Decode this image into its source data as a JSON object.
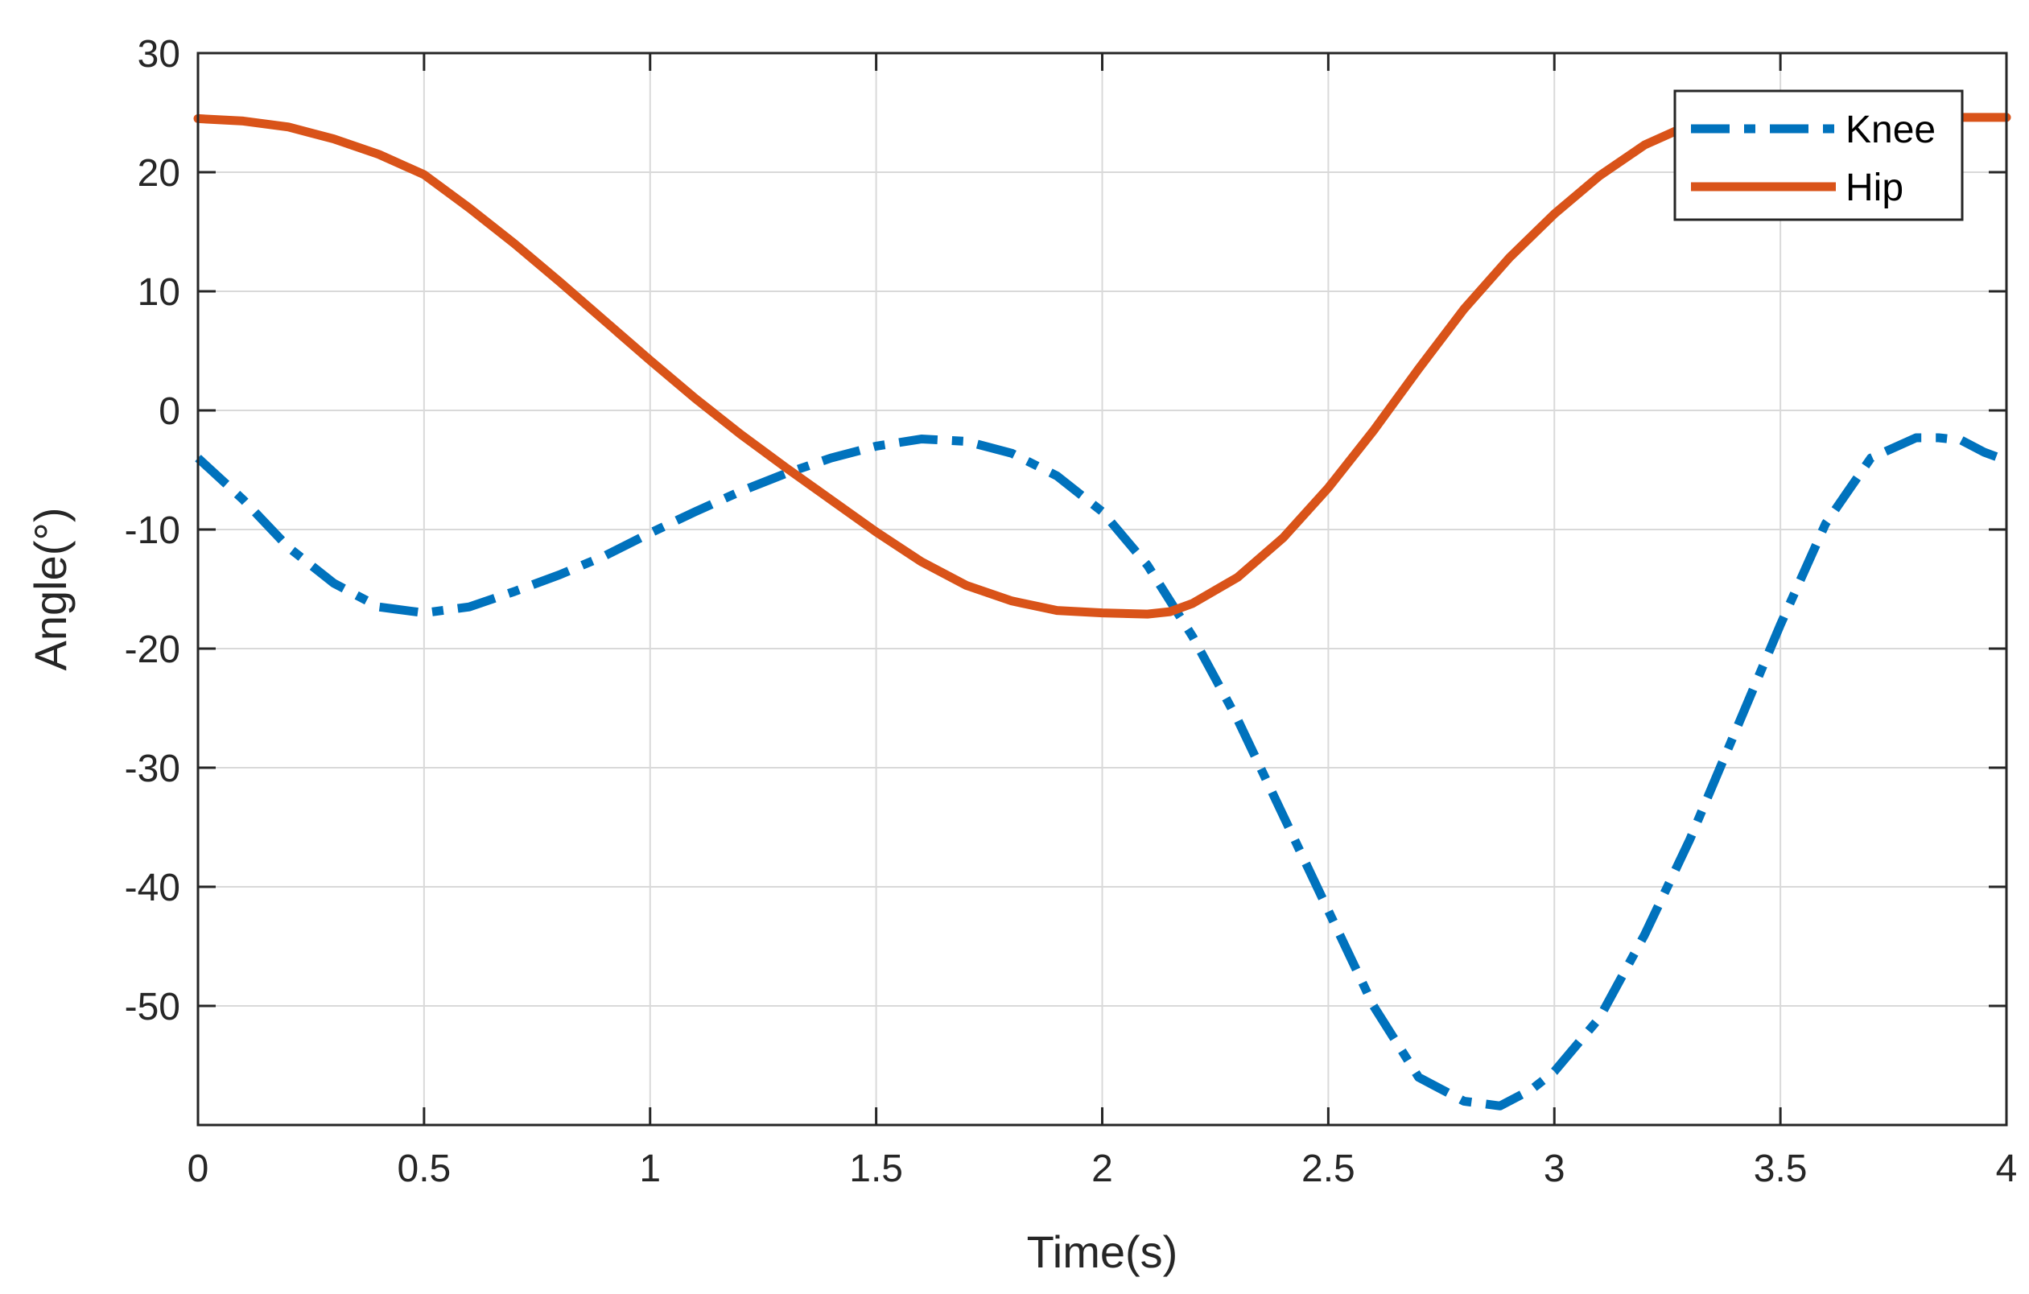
{
  "chart_data": {
    "type": "line",
    "title": "",
    "xlabel": "Time(s)",
    "ylabel": "Angle(°)",
    "xlim": [
      0,
      4
    ],
    "ylim": [
      -60,
      30
    ],
    "grid": true,
    "legend_position": "top-right",
    "x_ticks": [
      0,
      0.5,
      1,
      1.5,
      2,
      2.5,
      3,
      3.5,
      4
    ],
    "x_tick_labels": [
      "0",
      "0.5",
      "1",
      "1.5",
      "2",
      "2.5",
      "3",
      "3.5",
      "4"
    ],
    "y_ticks": [
      30,
      20,
      10,
      0,
      -10,
      -20,
      -30,
      -40,
      -50
    ],
    "y_tick_labels": [
      "30",
      "20",
      "10",
      "0",
      "-10",
      "-20",
      "-30",
      "-40",
      "-50"
    ],
    "series": [
      {
        "name": "Knee",
        "color": "#0072BD",
        "line_style": "dash-dot",
        "x": [
          0,
          0.1,
          0.2,
          0.3,
          0.4,
          0.5,
          0.6,
          0.7,
          0.8,
          0.9,
          1.0,
          1.1,
          1.2,
          1.3,
          1.4,
          1.5,
          1.6,
          1.7,
          1.8,
          1.9,
          2.0,
          2.1,
          2.2,
          2.3,
          2.4,
          2.5,
          2.6,
          2.7,
          2.8,
          2.88,
          2.95,
          3.0,
          3.1,
          3.2,
          3.3,
          3.4,
          3.5,
          3.6,
          3.7,
          3.8,
          3.85,
          3.9,
          3.95,
          4.0
        ],
        "y": [
          -4,
          -7.5,
          -11.5,
          -14.5,
          -16.5,
          -17,
          -16.5,
          -15.2,
          -13.8,
          -12.2,
          -10.3,
          -8.5,
          -6.8,
          -5.3,
          -4.0,
          -3.0,
          -2.4,
          -2.6,
          -3.6,
          -5.5,
          -8.5,
          -13,
          -19,
          -26,
          -34,
          -42,
          -50,
          -56,
          -58,
          -58.4,
          -57,
          -55.5,
          -51,
          -44,
          -36,
          -27,
          -18,
          -9.5,
          -4.0,
          -2.3,
          -2.3,
          -2.5,
          -3.5,
          -4.2
        ]
      },
      {
        "name": "Hip",
        "color": "#D95319",
        "line_style": "solid",
        "x": [
          0,
          0.1,
          0.2,
          0.3,
          0.4,
          0.5,
          0.6,
          0.7,
          0.8,
          0.9,
          1.0,
          1.1,
          1.2,
          1.3,
          1.4,
          1.5,
          1.6,
          1.7,
          1.8,
          1.9,
          2.0,
          2.1,
          2.15,
          2.2,
          2.3,
          2.4,
          2.5,
          2.6,
          2.7,
          2.8,
          2.9,
          3.0,
          3.1,
          3.2,
          3.3,
          3.4,
          3.5,
          3.6,
          3.7,
          3.8,
          3.9,
          4.0
        ],
        "y": [
          24.5,
          24.3,
          23.8,
          22.8,
          21.5,
          19.8,
          17.0,
          14.0,
          10.8,
          7.5,
          4.2,
          1.0,
          -2.0,
          -4.8,
          -7.5,
          -10.2,
          -12.7,
          -14.7,
          -16.0,
          -16.8,
          -17.0,
          -17.1,
          -16.9,
          -16.2,
          -14.0,
          -10.7,
          -6.5,
          -1.7,
          3.5,
          8.5,
          12.8,
          16.5,
          19.7,
          22.3,
          24.0,
          24.7,
          24.9,
          24.9,
          24.7,
          24.6,
          24.6,
          24.6
        ]
      }
    ]
  }
}
